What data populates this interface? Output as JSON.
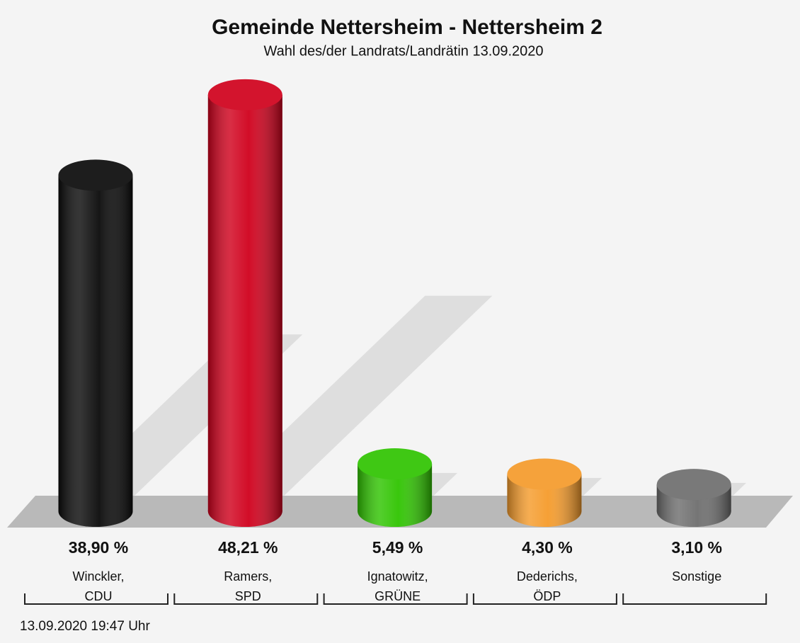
{
  "chart_data": {
    "type": "bar3d",
    "title": "Gemeinde Nettersheim - Nettersheim 2",
    "subtitle": "Wahl des/der Landrats/Landrätin 13.09.2020",
    "categories": [
      [
        "Winckler,",
        "CDU"
      ],
      [
        "Ramers,",
        "SPD"
      ],
      [
        "Ignatowitz,",
        "GRÜNE"
      ],
      [
        "Dederichs,",
        "ÖDP"
      ],
      [
        "Sonstige"
      ]
    ],
    "values": [
      38.9,
      48.21,
      5.49,
      4.3,
      3.1
    ],
    "value_labels": [
      "38,90 %",
      "48,21 %",
      "5,49 %",
      "4,30 %",
      "3,10 %"
    ],
    "colors": [
      "#0a0a0a",
      "#d0001c",
      "#2fc400",
      "#f59b2b",
      "#6e6e6e"
    ],
    "footnote": "13.09.2020 19:47 Uhr"
  }
}
